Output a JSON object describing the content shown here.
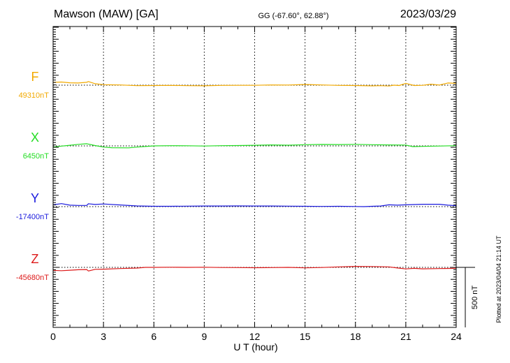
{
  "chart_data": {
    "type": "line",
    "title": "Mawson (MAW)  [GA]",
    "subtitle": "GG (-67.60°,  62.88°)",
    "date": "2023/03/29",
    "xlabel": "U T (hour)",
    "xlim": [
      0,
      24
    ],
    "x_ticks": [
      0,
      3,
      6,
      9,
      12,
      15,
      18,
      21,
      24
    ],
    "x_tick_labels": [
      "0",
      "3",
      "6",
      "9",
      "12",
      "15",
      "18",
      "21",
      "24"
    ],
    "scale_bar_label": "500 nT",
    "scale_bar_nT": 500,
    "plotted_note": "Plotted at 2023/04/04 21:14 UT",
    "grid": "dotted vertical every 3 h",
    "nt_per_major_tick": 100,
    "series": [
      {
        "name": "F",
        "baseline_label": "49310nT",
        "baseline_nT": 49310,
        "color": "#f2a900",
        "x": [
          0,
          0.5,
          1,
          1.5,
          2,
          2.1,
          2.5,
          3,
          4,
          5,
          6,
          7,
          8,
          9,
          10,
          11,
          12,
          13,
          14,
          15,
          16,
          17,
          18,
          19,
          19.5,
          20,
          20.3,
          20.6,
          21,
          21.5,
          22,
          22.5,
          23,
          23.5,
          24
        ],
        "values": [
          49333,
          49336,
          49330,
          49328,
          49334,
          49340,
          49322,
          49314,
          49312,
          49306,
          49307,
          49308,
          49306,
          49305,
          49308,
          49309,
          49309,
          49312,
          49311,
          49316,
          49312,
          49308,
          49307,
          49304,
          49306,
          49303,
          49310,
          49307,
          49325,
          49307,
          49309,
          49318,
          49311,
          49328,
          49325
        ]
      },
      {
        "name": "X",
        "baseline_label": "6450nT",
        "baseline_nT": 6450,
        "color": "#22dd22",
        "x": [
          0,
          0.5,
          1,
          1.5,
          2,
          2.5,
          3,
          3.5,
          4.5,
          5,
          6,
          7,
          8,
          9,
          10,
          11,
          12,
          13,
          14,
          15,
          16,
          17,
          18,
          19,
          20,
          21,
          21.4,
          22,
          23,
          24
        ],
        "values": [
          6440,
          6448,
          6455,
          6463,
          6468,
          6453,
          6440,
          6435,
          6434,
          6440,
          6450,
          6452,
          6451,
          6449,
          6452,
          6453,
          6455,
          6458,
          6456,
          6460,
          6462,
          6461,
          6463,
          6460,
          6458,
          6457,
          6444,
          6446,
          6449,
          6452
        ]
      },
      {
        "name": "Y",
        "baseline_label": "-17400nT",
        "baseline_nT": -17400,
        "color": "#1a1add",
        "x": [
          0,
          0.5,
          1,
          1.5,
          2,
          2.1,
          2.5,
          3,
          4,
          5,
          6,
          7,
          8,
          9,
          10,
          11,
          12,
          13,
          14,
          15,
          16,
          17,
          18,
          18.5,
          19,
          19.5,
          20,
          20.5,
          21,
          22,
          23,
          23.5,
          24
        ],
        "values": [
          -17385,
          -17375,
          -17388,
          -17390,
          -17390,
          -17376,
          -17382,
          -17378,
          -17386,
          -17394,
          -17397,
          -17397,
          -17396,
          -17395,
          -17395,
          -17394,
          -17395,
          -17395,
          -17396,
          -17397,
          -17398,
          -17397,
          -17399,
          -17400,
          -17397,
          -17395,
          -17385,
          -17388,
          -17385,
          -17380,
          -17380,
          -17388,
          -17392
        ]
      },
      {
        "name": "Z",
        "baseline_label": "-45680nT",
        "baseline_nT": -45680,
        "color": "#dd1a1a",
        "x": [
          0,
          0.5,
          1,
          1.5,
          2,
          2.1,
          2.5,
          3,
          4,
          5,
          5.5,
          6,
          7,
          8,
          9,
          10,
          11,
          12,
          13,
          14,
          15,
          16,
          17,
          18,
          19,
          20,
          20.5,
          21,
          21.5,
          22,
          23,
          24
        ],
        "values": [
          -45705,
          -45708,
          -45704,
          -45700,
          -45698,
          -45710,
          -45696,
          -45695,
          -45690,
          -45686,
          -45680,
          -45680,
          -45679,
          -45680,
          -45679,
          -45681,
          -45682,
          -45683,
          -45682,
          -45680,
          -45684,
          -45681,
          -45676,
          -45672,
          -45673,
          -45676,
          -45685,
          -45693,
          -45688,
          -45692,
          -45690,
          -45688
        ]
      }
    ]
  }
}
